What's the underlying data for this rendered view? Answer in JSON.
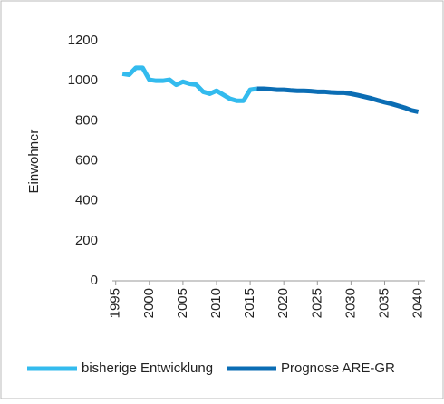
{
  "chart_data": {
    "type": "line",
    "y_label": "Einwohner",
    "x": [
      1996,
      1997,
      1998,
      1999,
      2000,
      2001,
      2002,
      2003,
      2004,
      2005,
      2006,
      2007,
      2008,
      2009,
      2010,
      2011,
      2012,
      2013,
      2014,
      2015,
      2016,
      2017,
      2018,
      2019,
      2020,
      2021,
      2022,
      2023,
      2024,
      2025,
      2026,
      2027,
      2028,
      2029,
      2030,
      2031,
      2032,
      2033,
      2034,
      2035,
      2036,
      2037,
      2038,
      2039,
      2040
    ],
    "series": [
      {
        "name": "bisherige Entwicklung",
        "color": "#33bbee",
        "values": [
          1035,
          1030,
          1065,
          1065,
          1005,
          1000,
          1000,
          1005,
          980,
          995,
          985,
          980,
          945,
          935,
          950,
          930,
          910,
          900,
          900,
          955,
          960,
          null,
          null,
          null,
          null,
          null,
          null,
          null,
          null,
          null,
          null,
          null,
          null,
          null,
          null,
          null,
          null,
          null,
          null,
          null,
          null,
          null,
          null,
          null,
          null
        ]
      },
      {
        "name": "Prognose ARE-GR",
        "color": "#0b6db4",
        "values": [
          null,
          null,
          null,
          null,
          null,
          null,
          null,
          null,
          null,
          null,
          null,
          null,
          null,
          null,
          null,
          null,
          null,
          null,
          null,
          null,
          960,
          960,
          958,
          955,
          955,
          952,
          950,
          950,
          948,
          945,
          945,
          942,
          940,
          940,
          935,
          928,
          920,
          912,
          902,
          893,
          885,
          875,
          865,
          852,
          845
        ]
      }
    ],
    "xlim": [
      1994.5,
      2041
    ],
    "xticks": [
      1995,
      2000,
      2005,
      2010,
      2015,
      2020,
      2025,
      2030,
      2035,
      2040
    ],
    "ylim": [
      0,
      1200
    ],
    "yticks": [
      0,
      200,
      400,
      600,
      800,
      1000,
      1200
    ],
    "legend": "bottom"
  }
}
